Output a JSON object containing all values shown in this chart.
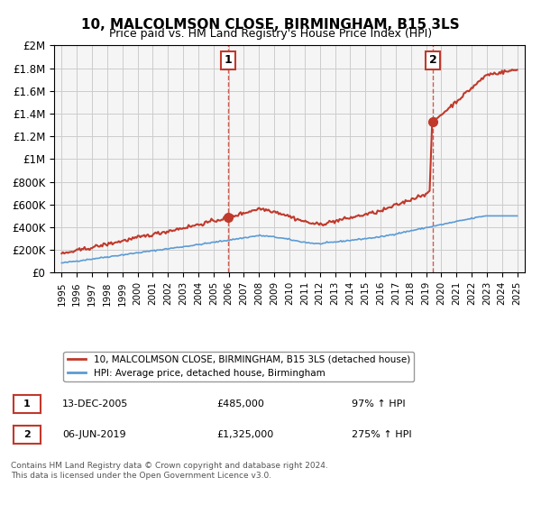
{
  "title": "10, MALCOLMSON CLOSE, BIRMINGHAM, B15 3LS",
  "subtitle": "Price paid vs. HM Land Registry's House Price Index (HPI)",
  "ylabel_ticks": [
    "£0",
    "£200K",
    "£400K",
    "£600K",
    "£800K",
    "£1M",
    "£1.2M",
    "£1.4M",
    "£1.6M",
    "£1.8M",
    "£2M"
  ],
  "ytick_values": [
    0,
    200000,
    400000,
    600000,
    800000,
    1000000,
    1200000,
    1400000,
    1600000,
    1800000,
    2000000
  ],
  "xlim": [
    1994.5,
    2025.5
  ],
  "ylim": [
    0,
    2000000
  ],
  "transaction1_x": 2005.95,
  "transaction1_y": 485000,
  "transaction2_x": 2019.44,
  "transaction2_y": 1325000,
  "vline1_x": 2005.95,
  "vline2_x": 2019.44,
  "marker_color": "#c0392b",
  "hpi_line_color": "#5b9bd5",
  "price_line_color": "#c0392b",
  "legend_line1": "10, MALCOLMSON CLOSE, BIRMINGHAM, B15 3LS (detached house)",
  "legend_line2": "HPI: Average price, detached house, Birmingham",
  "annotation1_label": "1",
  "annotation2_label": "2",
  "table_row1": [
    "1",
    "13-DEC-2005",
    "£485,000",
    "97% ↑ HPI"
  ],
  "table_row2": [
    "2",
    "06-JUN-2019",
    "£1,325,000",
    "275% ↑ HPI"
  ],
  "footnote": "Contains HM Land Registry data © Crown copyright and database right 2024.\nThis data is licensed under the Open Government Licence v3.0.",
  "background_color": "#ffffff",
  "grid_color": "#cccccc",
  "plot_bg_color": "#f5f5f5"
}
